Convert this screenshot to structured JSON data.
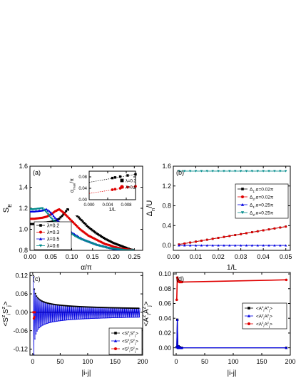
{
  "chart_data": [
    {
      "type": "line",
      "panel_label": "(a)",
      "xlabel": "α/π",
      "ylabel": "S",
      "ylabel_sub": "E",
      "xlim": [
        0,
        0.27
      ],
      "ylim": [
        0.8,
        1.6
      ],
      "xticks": [
        0.0,
        0.05,
        0.1,
        0.15,
        0.2,
        0.25
      ],
      "xtick_labels": [
        "0.00",
        "0.05",
        "0.10",
        "0.15",
        "0.20",
        "0.25"
      ],
      "yticks": [
        0.8,
        1.0,
        1.2,
        1.4,
        1.6
      ],
      "ytick_labels": [
        "0.8",
        "1.0",
        "1.2",
        "1.4",
        "1.6"
      ],
      "legend_position": "bottom-left",
      "series": [
        {
          "name": "λ=0.2",
          "color": "#000000",
          "marker": "square",
          "x": [
            0.0,
            0.01,
            0.02,
            0.03,
            0.04,
            0.05,
            0.06,
            0.07,
            0.08,
            0.09,
            0.1,
            0.11,
            0.12,
            0.13,
            0.14,
            0.15,
            0.16,
            0.17,
            0.18,
            0.19,
            0.2,
            0.21,
            0.22,
            0.23,
            0.24,
            0.25
          ],
          "y": [
            1.05,
            1.05,
            1.055,
            1.06,
            1.065,
            1.07,
            1.08,
            1.1,
            1.14,
            1.19,
            1.18,
            1.14,
            1.1,
            1.06,
            1.02,
            0.99,
            0.96,
            0.935,
            0.91,
            0.89,
            0.87,
            0.855,
            0.84,
            0.825,
            0.81,
            0.8
          ]
        },
        {
          "name": "λ=0.3",
          "color": "#e00000",
          "marker": "circle",
          "x": [
            0.0,
            0.01,
            0.02,
            0.03,
            0.04,
            0.05,
            0.06,
            0.07,
            0.08,
            0.09,
            0.1,
            0.11,
            0.12,
            0.13,
            0.14,
            0.15,
            0.16,
            0.17,
            0.18,
            0.19,
            0.2,
            0.21,
            0.22,
            0.23,
            0.24,
            0.25
          ],
          "y": [
            1.1,
            1.1,
            1.105,
            1.11,
            1.12,
            1.14,
            1.17,
            1.19,
            1.16,
            1.12,
            1.08,
            1.04,
            1.0,
            0.97,
            0.94,
            0.92,
            0.9,
            0.88,
            0.86,
            0.85,
            0.835,
            0.825,
            0.815,
            0.81,
            0.805,
            0.8
          ]
        },
        {
          "name": "λ=0.5",
          "color": "#0000e0",
          "marker": "triangle-up",
          "x": [
            0.0,
            0.01,
            0.02,
            0.03,
            0.04,
            0.05,
            0.06,
            0.07,
            0.08,
            0.09,
            0.1,
            0.11,
            0.12,
            0.13,
            0.14,
            0.15,
            0.16,
            0.17,
            0.18,
            0.19,
            0.2,
            0.21,
            0.22,
            0.23,
            0.24,
            0.25
          ],
          "y": [
            1.17,
            1.17,
            1.175,
            1.18,
            1.19,
            1.16,
            1.11,
            1.07,
            1.03,
            1.0,
            0.97,
            0.945,
            0.92,
            0.9,
            0.885,
            0.87,
            0.855,
            0.845,
            0.835,
            0.825,
            0.815,
            0.81,
            0.805,
            0.8,
            0.8,
            0.8
          ]
        },
        {
          "name": "λ=0.6",
          "color": "#008b8b",
          "marker": "triangle-down",
          "x": [
            0.0,
            0.01,
            0.02,
            0.03,
            0.04,
            0.05,
            0.06,
            0.07,
            0.08,
            0.09,
            0.1,
            0.11,
            0.12,
            0.13,
            0.14,
            0.15,
            0.16,
            0.17,
            0.18,
            0.19,
            0.2,
            0.21,
            0.22,
            0.23,
            0.24,
            0.25
          ],
          "y": [
            1.19,
            1.19,
            1.195,
            1.2,
            1.16,
            1.11,
            1.07,
            1.04,
            1.01,
            0.98,
            0.955,
            0.93,
            0.91,
            0.895,
            0.88,
            0.865,
            0.85,
            0.84,
            0.83,
            0.82,
            0.815,
            0.81,
            0.805,
            0.8,
            0.8,
            0.8
          ]
        }
      ],
      "inset": {
        "type": "scatter",
        "xlabel": "1/L",
        "ylabel": "α",
        "ylabel_sub": "max",
        "ylabel_suffix": "/π",
        "xlim": [
          0,
          0.01
        ],
        "ylim": [
          0.0,
          0.1
        ],
        "xticks": [
          0.0,
          0.004,
          0.008
        ],
        "xtick_labels": [
          "0.000",
          "0.004",
          "0.008"
        ],
        "yticks": [
          0.0,
          0.04,
          0.08
        ],
        "ytick_labels": [
          "0.00",
          "0.04",
          "0.08"
        ],
        "series": [
          {
            "name": "λ=0.3",
            "color": "#000000",
            "marker": "square",
            "x": [
              0.005,
              0.0056,
              0.0067,
              0.0083,
              0.01
            ],
            "y": [
              0.076,
              0.078,
              0.081,
              0.085,
              0.089
            ],
            "fit_intercept": 0.061
          },
          {
            "name": "λ=0.6",
            "color": "#e00000",
            "marker": "circle",
            "x": [
              0.005,
              0.0056,
              0.0067,
              0.0083,
              0.01
            ],
            "y": [
              0.035,
              0.037,
              0.04,
              0.044,
              0.047
            ],
            "fit_intercept": 0.022
          }
        ]
      }
    },
    {
      "type": "line",
      "panel_label": "(b)",
      "xlabel": "1/L",
      "ylabel": "Δ",
      "ylabel_sub": "n",
      "ylabel_suffix": "/U",
      "xlim": [
        0,
        0.052
      ],
      "ylim": [
        -0.1,
        1.6
      ],
      "xticks": [
        0.0,
        0.01,
        0.02,
        0.03,
        0.04,
        0.05
      ],
      "xtick_labels": [
        "0.00",
        "0.01",
        "0.02",
        "0.03",
        "0.04",
        "0.05"
      ],
      "yticks": [
        0.0,
        0.4,
        0.8,
        1.2,
        1.6
      ],
      "ytick_labels": [
        "0.0",
        "0.4",
        "0.8",
        "1.2",
        "1.6"
      ],
      "legend_position": "center-right",
      "series": [
        {
          "name": "Δ",
          "name_sub": "1",
          "name_suffix": ",α=0.02π",
          "color": "#000000",
          "marker": "square",
          "x": [
            0.0025,
            0.005,
            0.0075,
            0.01,
            0.0125,
            0.015,
            0.0175,
            0.02,
            0.0225,
            0.025,
            0.0275,
            0.03,
            0.0325,
            0.035,
            0.0375,
            0.04,
            0.0425,
            0.045,
            0.0475,
            0.05
          ],
          "y": [
            0.019,
            0.038,
            0.057,
            0.076,
            0.095,
            0.114,
            0.133,
            0.152,
            0.171,
            0.19,
            0.209,
            0.228,
            0.247,
            0.266,
            0.285,
            0.304,
            0.323,
            0.342,
            0.361,
            0.38
          ]
        },
        {
          "name": "Δ",
          "name_sub": "2",
          "name_suffix": ",α=0.02π",
          "color": "#e00000",
          "marker": "circle",
          "x": [
            0.0025,
            0.005,
            0.0075,
            0.01,
            0.0125,
            0.015,
            0.0175,
            0.02,
            0.0225,
            0.025,
            0.0275,
            0.03,
            0.0325,
            0.035,
            0.0375,
            0.04,
            0.0425,
            0.045,
            0.0475,
            0.05
          ],
          "y": [
            0.019,
            0.038,
            0.057,
            0.076,
            0.095,
            0.114,
            0.133,
            0.152,
            0.171,
            0.19,
            0.209,
            0.228,
            0.247,
            0.266,
            0.285,
            0.304,
            0.323,
            0.342,
            0.361,
            0.38
          ]
        },
        {
          "name": "Δ",
          "name_sub": "1",
          "name_suffix": ",α=0.25π",
          "color": "#0000e0",
          "marker": "triangle-up",
          "x": [
            0.0025,
            0.005,
            0.0075,
            0.01,
            0.0125,
            0.015,
            0.0175,
            0.02,
            0.0225,
            0.025,
            0.0275,
            0.03,
            0.0325,
            0.035,
            0.0375,
            0.04,
            0.0425,
            0.045,
            0.0475,
            0.05
          ],
          "y": [
            0,
            0,
            0,
            0,
            0,
            0,
            0,
            0,
            0,
            0,
            0,
            0,
            0,
            0,
            0,
            0,
            0,
            0,
            0,
            0
          ]
        },
        {
          "name": "Δ",
          "name_sub": "2",
          "name_suffix": ",α=0.25π",
          "color": "#008b8b",
          "marker": "triangle-down",
          "x": [
            0.0025,
            0.005,
            0.0075,
            0.01,
            0.0125,
            0.015,
            0.0175,
            0.02,
            0.0225,
            0.025,
            0.0275,
            0.03,
            0.0325,
            0.035,
            0.0375,
            0.04,
            0.0425,
            0.045,
            0.0475,
            0.05
          ],
          "y": [
            1.5,
            1.5,
            1.5,
            1.5,
            1.5,
            1.5,
            1.5,
            1.5,
            1.5,
            1.5,
            1.5,
            1.5,
            1.5,
            1.5,
            1.5,
            1.5,
            1.5,
            1.5,
            1.5,
            1.5
          ]
        }
      ]
    },
    {
      "type": "line",
      "panel_label": "(c)",
      "xlabel": "|i-j|",
      "ylabel": "<S",
      "ylabel_sup1": "z",
      "ylabel_sub1": "i",
      "ylabel_mid": "S",
      "ylabel_sup2": "z",
      "ylabel_sub2": "j",
      "ylabel_end": ">",
      "xlim": [
        -5,
        200
      ],
      "ylim": [
        -0.14,
        0.13
      ],
      "xticks": [
        0,
        50,
        100,
        150,
        200
      ],
      "xtick_labels": [
        "0",
        "50",
        "100",
        "150",
        "200"
      ],
      "yticks": [
        -0.12,
        -0.06,
        0.0,
        0.06,
        0.12
      ],
      "ytick_labels": [
        "-0.12",
        "-0.06",
        "0.00",
        "0.06",
        "0.12"
      ],
      "legend_position": "bottom-right",
      "envelope": {
        "pos_amp": 0.12,
        "neg_amp": -0.13,
        "decay_exp": 0.42,
        "x_start": 1,
        "x_end": 193,
        "step": 2
      },
      "series": [
        {
          "name": "<S",
          "sup1": "z",
          "sub1": "i",
          "mid": "S",
          "sup2": "z",
          "sub2": "j",
          "end": ">",
          "color": "#000000",
          "marker": "square"
        },
        {
          "name": "<S",
          "sup1": "z",
          "sub1": "i",
          "mid": "S",
          "sup2": "z",
          "sub2": "j",
          "end": ">",
          "sub2_suffix": "",
          "color": "#0000e0",
          "marker": "triangle-up"
        },
        {
          "name": "<S",
          "sup1": "z",
          "sub1": "i",
          "mid": "S",
          "sup2": "z",
          "sub2": "j",
          "end": ">",
          "color": "#e00000",
          "marker": "circle"
        }
      ]
    },
    {
      "type": "line",
      "panel_label": "(d)",
      "xlabel": "|i-j|",
      "ylabel": "<A",
      "ylabel_sup1": "z",
      "ylabel_sub1": "i",
      "ylabel_mid": "A",
      "ylabel_sup2": "z",
      "ylabel_sub2": "j",
      "ylabel_end": ">",
      "xlim": [
        -5,
        200
      ],
      "ylim": [
        -0.01,
        0.102
      ],
      "xticks": [
        0,
        50,
        100,
        150,
        200
      ],
      "xtick_labels": [
        "0",
        "50",
        "100",
        "150",
        "200"
      ],
      "yticks": [
        0.0,
        0.02,
        0.04,
        0.06,
        0.08,
        0.1
      ],
      "ytick_labels": [
        "0.00",
        "0.02",
        "0.04",
        "0.06",
        "0.08",
        "0.10"
      ],
      "legend_position": "center-right",
      "series": [
        {
          "name": "<A",
          "sup1": "x",
          "sub1": "i",
          "mid": "A",
          "sup2": "x",
          "sub2": "j",
          "end": ">",
          "color": "#000000",
          "marker": "square",
          "x": [
            1,
            2,
            3,
            4,
            5,
            6,
            8,
            10,
            193
          ],
          "y": [
            0.001,
            0.038,
            0.0,
            0.002,
            0.0,
            0.001,
            0.0,
            0.0,
            0.0
          ]
        },
        {
          "name": "<A",
          "sup1": "y",
          "sub1": "i",
          "mid": "A",
          "sup2": "y",
          "sub2": "j",
          "end": ">",
          "color": "#0000e0",
          "marker": "triangle-up",
          "x": [
            1,
            2,
            3,
            4,
            5,
            6,
            8,
            10,
            193
          ],
          "y": [
            0.001,
            0.038,
            0.0,
            0.002,
            0.0,
            0.001,
            0.0,
            0.0,
            0.0
          ]
        },
        {
          "name": "<A",
          "sup1": "z",
          "sub1": "i",
          "mid": "A",
          "sup2": "z",
          "sub2": "j",
          "end": ">",
          "color": "#e00000",
          "marker": "circle",
          "x": [
            1,
            2,
            3,
            4,
            5,
            6,
            8,
            10,
            193
          ],
          "y": [
            0.065,
            0.095,
            0.092,
            0.09,
            0.09,
            0.089,
            0.089,
            0.089,
            0.092
          ]
        }
      ]
    }
  ]
}
